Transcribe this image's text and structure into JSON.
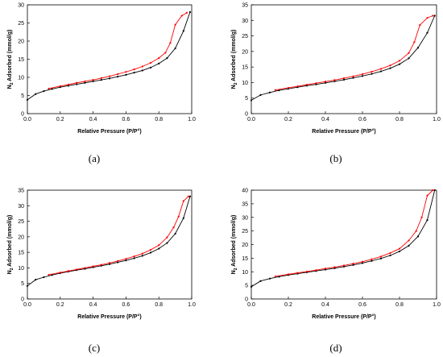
{
  "chart_data": [
    {
      "type": "line",
      "caption": "(a)",
      "xlabel": "Relative Pressure (P/P°)",
      "ylabel": "N2 Adsorbed (mmol/g)",
      "xlim": [
        0,
        1.0
      ],
      "ylim": [
        0,
        30
      ],
      "xticks": [
        "0.0",
        "0.2",
        "0.4",
        "0.6",
        "0.8",
        "1.0"
      ],
      "yticks": [
        "0",
        "5",
        "10",
        "15",
        "20",
        "25",
        "30"
      ],
      "series": [
        {
          "color": "#000000",
          "x": [
            0.0,
            0.05,
            0.1,
            0.15,
            0.2,
            0.25,
            0.3,
            0.35,
            0.4,
            0.45,
            0.5,
            0.55,
            0.6,
            0.65,
            0.7,
            0.75,
            0.8,
            0.85,
            0.9,
            0.95,
            0.99
          ],
          "y": [
            3.8,
            5.4,
            6.2,
            6.8,
            7.3,
            7.7,
            8.1,
            8.5,
            8.9,
            9.3,
            9.7,
            10.2,
            10.7,
            11.3,
            11.9,
            12.7,
            13.8,
            15.3,
            18.0,
            22.8,
            28.0
          ]
        },
        {
          "color": "#ff0000",
          "x": [
            0.13,
            0.2,
            0.25,
            0.3,
            0.35,
            0.4,
            0.45,
            0.5,
            0.55,
            0.6,
            0.65,
            0.7,
            0.75,
            0.8,
            0.84,
            0.87,
            0.9,
            0.94,
            0.97
          ],
          "y": [
            6.9,
            7.6,
            8.0,
            8.5,
            8.9,
            9.3,
            9.8,
            10.3,
            10.9,
            11.5,
            12.2,
            13.0,
            14.0,
            15.3,
            16.8,
            19.5,
            24.5,
            27.0,
            27.8
          ]
        }
      ]
    },
    {
      "type": "line",
      "caption": "(b)",
      "xlabel": "Relative Pressure (P/P°)",
      "ylabel": "N2 Adsorbed (mmol/g)",
      "xlim": [
        0,
        1.0
      ],
      "ylim": [
        0,
        35
      ],
      "xticks": [
        "0.0",
        "0.2",
        "0.4",
        "0.6",
        "0.8",
        "1.0"
      ],
      "yticks": [
        "0",
        "5",
        "10",
        "15",
        "20",
        "25",
        "30",
        "35"
      ],
      "series": [
        {
          "color": "#000000",
          "x": [
            0.0,
            0.05,
            0.1,
            0.15,
            0.2,
            0.25,
            0.3,
            0.35,
            0.4,
            0.45,
            0.5,
            0.55,
            0.6,
            0.65,
            0.7,
            0.75,
            0.8,
            0.85,
            0.9,
            0.95,
            0.99
          ],
          "y": [
            4.3,
            6.0,
            6.8,
            7.5,
            8.0,
            8.5,
            9.0,
            9.4,
            9.9,
            10.4,
            10.9,
            11.5,
            12.1,
            12.8,
            13.6,
            14.6,
            15.9,
            17.8,
            21.2,
            26.0,
            31.5
          ]
        },
        {
          "color": "#ff0000",
          "x": [
            0.13,
            0.2,
            0.25,
            0.3,
            0.35,
            0.4,
            0.45,
            0.5,
            0.55,
            0.6,
            0.65,
            0.7,
            0.75,
            0.8,
            0.85,
            0.88,
            0.91,
            0.95,
            0.98
          ],
          "y": [
            7.6,
            8.3,
            8.8,
            9.3,
            9.8,
            10.3,
            10.8,
            11.4,
            12.0,
            12.7,
            13.5,
            14.4,
            15.5,
            17.0,
            19.5,
            23.0,
            28.5,
            30.8,
            31.5
          ]
        }
      ]
    },
    {
      "type": "line",
      "caption": "(c)",
      "xlabel": "Relative Pressure (P/P°)",
      "ylabel": "N2 Adsorbed (mmol/g)",
      "xlim": [
        0,
        1.0
      ],
      "ylim": [
        0,
        35
      ],
      "xticks": [
        "0.0",
        "0.2",
        "0.4",
        "0.6",
        "0.8",
        "1.0"
      ],
      "yticks": [
        "0",
        "5",
        "10",
        "15",
        "20",
        "25",
        "30",
        "35"
      ],
      "series": [
        {
          "color": "#000000",
          "x": [
            0.0,
            0.05,
            0.1,
            0.15,
            0.2,
            0.25,
            0.3,
            0.35,
            0.4,
            0.45,
            0.5,
            0.55,
            0.6,
            0.65,
            0.7,
            0.75,
            0.8,
            0.85,
            0.9,
            0.95,
            0.99
          ],
          "y": [
            4.2,
            6.2,
            7.0,
            7.7,
            8.3,
            8.8,
            9.3,
            9.7,
            10.2,
            10.7,
            11.2,
            11.8,
            12.4,
            13.1,
            13.9,
            14.9,
            16.2,
            18.0,
            21.0,
            26.0,
            33.0
          ]
        },
        {
          "color": "#ff0000",
          "x": [
            0.13,
            0.2,
            0.25,
            0.3,
            0.35,
            0.4,
            0.45,
            0.5,
            0.55,
            0.6,
            0.65,
            0.7,
            0.75,
            0.8,
            0.85,
            0.89,
            0.92,
            0.95,
            0.98
          ],
          "y": [
            7.8,
            8.5,
            9.0,
            9.5,
            10.0,
            10.5,
            11.0,
            11.6,
            12.2,
            12.9,
            13.7,
            14.6,
            15.8,
            17.3,
            19.8,
            23.0,
            26.5,
            31.5,
            33.0
          ]
        }
      ]
    },
    {
      "type": "line",
      "caption": "(d)",
      "xlabel": "Relative Pressure (P/P°)",
      "ylabel": "N2 Adsorbed (mmol/g)",
      "xlim": [
        0,
        1.0
      ],
      "ylim": [
        0,
        40
      ],
      "xticks": [
        "0.0",
        "0.2",
        "0.4",
        "0.6",
        "0.8",
        "1.0"
      ],
      "yticks": [
        "0",
        "5",
        "10",
        "15",
        "20",
        "25",
        "30",
        "35",
        "40"
      ],
      "series": [
        {
          "color": "#000000",
          "x": [
            0.0,
            0.05,
            0.1,
            0.15,
            0.2,
            0.25,
            0.3,
            0.35,
            0.4,
            0.45,
            0.5,
            0.55,
            0.6,
            0.65,
            0.7,
            0.75,
            0.8,
            0.85,
            0.9,
            0.95,
            0.99
          ],
          "y": [
            4.5,
            6.6,
            7.5,
            8.2,
            8.8,
            9.3,
            9.8,
            10.3,
            10.8,
            11.3,
            11.9,
            12.5,
            13.2,
            14.0,
            14.9,
            16.0,
            17.5,
            19.6,
            23.0,
            29.0,
            40.0
          ]
        },
        {
          "color": "#ff0000",
          "x": [
            0.13,
            0.2,
            0.25,
            0.3,
            0.35,
            0.4,
            0.45,
            0.5,
            0.55,
            0.6,
            0.65,
            0.7,
            0.75,
            0.8,
            0.85,
            0.89,
            0.92,
            0.95,
            0.98
          ],
          "y": [
            8.3,
            9.1,
            9.6,
            10.1,
            10.6,
            11.2,
            11.7,
            12.3,
            13.0,
            13.7,
            14.6,
            15.6,
            16.9,
            18.5,
            21.5,
            25.0,
            30.0,
            38.0,
            40.0
          ]
        }
      ]
    }
  ]
}
